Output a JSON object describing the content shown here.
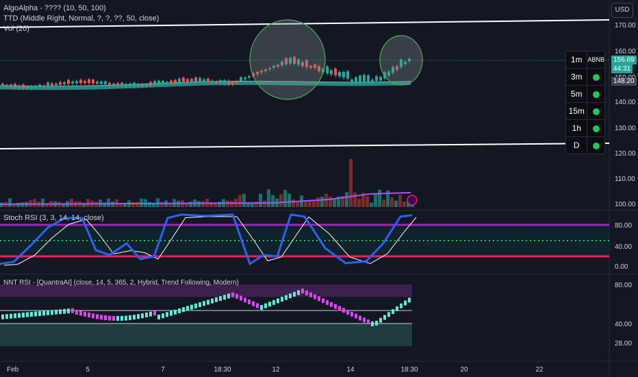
{
  "header": {
    "indicator_1": "AlgoAlpha - ???? (10, 50, 100)",
    "indicator_2": "TTD (Middle Right, Normal, ?, ?, ??, 50, close)",
    "indicator_3": "Vol (20)",
    "currency_button": "USD"
  },
  "price_axis": {
    "ticks": [
      "170.00",
      "160.00",
      "150.00",
      "140.00",
      "130.00",
      "120.00",
      "110.00",
      "100.00"
    ],
    "last_price": "156.69",
    "countdown": "44:31",
    "price_tag_2": "148.20",
    "symbol": "ABNB",
    "colors": {
      "last_price_bg": "#26a69a",
      "tag_bg": "#434651"
    }
  },
  "timeframe_table": {
    "rows": [
      {
        "label": "1m",
        "status": "ABNB"
      },
      {
        "label": "3m",
        "status": "green-dot"
      },
      {
        "label": "5m",
        "status": "green-dot"
      },
      {
        "label": "15m",
        "status": "green-dot"
      },
      {
        "label": "1h",
        "status": "green-dot"
      },
      {
        "label": "D",
        "status": "green-dot"
      }
    ]
  },
  "stoch_rsi": {
    "title": "Stoch RSI (3, 3, 14, 14, close)",
    "ticks": [
      "80.00",
      "40.00",
      "0.00"
    ],
    "colors": {
      "k_line": "#2962ff",
      "d_line": "#ffffff",
      "upper_band": "#9c27b0",
      "lower_band": "#e91e63",
      "mid": "#22c55e"
    }
  },
  "nnt_rsi": {
    "title": "NNT RSI - [QuantraAI] (close, 14, 5, 365, 2, Hybrid, Trend Following, Modern)",
    "ticks": [
      "80.00",
      "40.00",
      "28.00"
    ],
    "colors": {
      "bull": "#5eead4",
      "bear": "#d946ef"
    }
  },
  "time_axis": {
    "labels": [
      "Feb",
      "5",
      "7",
      "18:30",
      "12",
      "14",
      "18:30",
      "20",
      "22"
    ]
  },
  "colors": {
    "background": "#131722",
    "candle_up": "#26a69a",
    "candle_down": "#ef5350",
    "ma_band": "#26a69a",
    "highlight_circle": "#4caf50"
  }
}
